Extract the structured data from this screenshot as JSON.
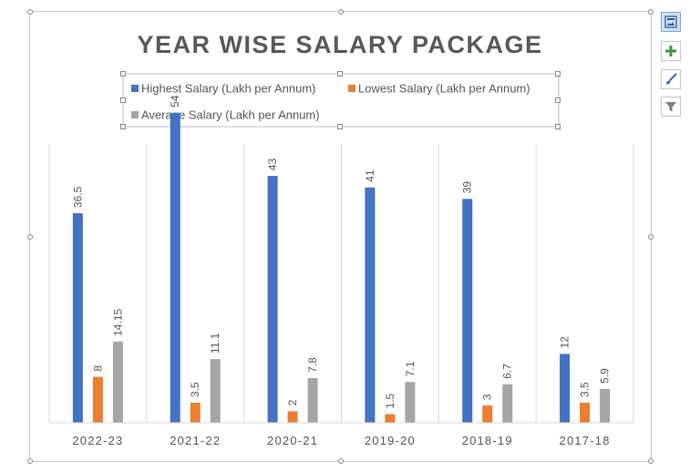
{
  "chart_data": {
    "type": "bar",
    "title": "YEAR WISE SALARY PACKAGE",
    "xlabel": "",
    "ylabel": "",
    "categories": [
      "2022-23",
      "2021-22",
      "2020-21",
      "2019-20",
      "2018-19",
      "2017-18"
    ],
    "series": [
      {
        "name": "Highest Salary (Lakh per Annum)",
        "color": "#4472c4",
        "values": [
          36.5,
          54,
          43,
          41,
          39,
          12
        ]
      },
      {
        "name": "Lowest Salary (Lakh per Annum)",
        "color": "#ed7d31",
        "values": [
          8,
          3.5,
          2,
          1.5,
          3,
          3.5
        ]
      },
      {
        "name": "Average Salary (Lakh per Annum)",
        "color": "#a5a5a5",
        "values": [
          14.15,
          11.1,
          7.8,
          7.1,
          6.7,
          5.9
        ]
      }
    ],
    "ylim": [
      0,
      60
    ],
    "grid": "vertical separators between categories",
    "legend": "top"
  },
  "side_buttons": [
    {
      "icon": "chart-layout-icon",
      "active": true
    },
    {
      "icon": "plus-icon",
      "active": false
    },
    {
      "icon": "brush-icon",
      "active": false
    },
    {
      "icon": "filter-icon",
      "active": false
    }
  ]
}
